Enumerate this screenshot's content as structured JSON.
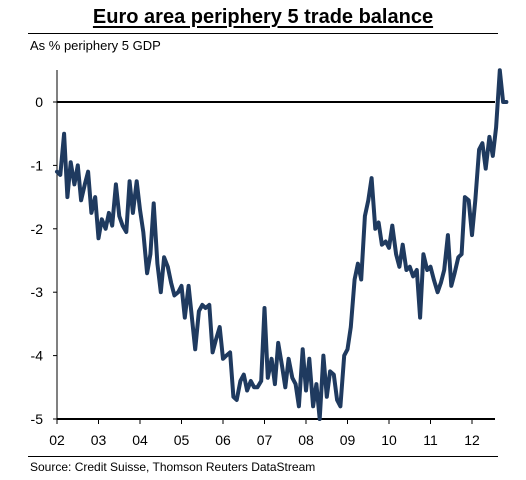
{
  "header": {
    "title": "Euro area periphery 5 trade balance",
    "subtitle": "As % periphery 5 GDP"
  },
  "footer": {
    "source": "Source: Credit Suisse, Thomson Reuters DataStream"
  },
  "colors": {
    "line": "#1F3A5F",
    "axis": "#000000"
  },
  "chart_data": {
    "type": "line",
    "title": "Euro area periphery 5 trade balance",
    "ylabel": "As % periphery 5 GDP",
    "xlabel": "",
    "ylim": [
      -5,
      0.5
    ],
    "xlim": [
      2002.0,
      2012.83
    ],
    "y_ticks": [
      "0",
      "-1",
      "-2",
      "-3",
      "-4",
      "-5"
    ],
    "y_tick_values": [
      0,
      -1,
      -2,
      -3,
      -4,
      -5
    ],
    "x_ticks": [
      "02",
      "03",
      "04",
      "05",
      "06",
      "07",
      "08",
      "09",
      "10",
      "11",
      "12"
    ],
    "x_tick_values": [
      2002,
      2003,
      2004,
      2005,
      2006,
      2007,
      2008,
      2009,
      2010,
      2011,
      2012
    ],
    "grid": false,
    "series": [
      {
        "x": [
          2002.0,
          2002.08,
          2002.17,
          2002.25,
          2002.33,
          2002.42,
          2002.5,
          2002.58,
          2002.67,
          2002.75,
          2002.83,
          2002.92,
          2003.0,
          2003.08,
          2003.17,
          2003.25,
          2003.33,
          2003.42,
          2003.5,
          2003.58,
          2003.67,
          2003.75,
          2003.83,
          2003.92,
          2004.0,
          2004.08,
          2004.17,
          2004.25,
          2004.33,
          2004.42,
          2004.5,
          2004.58,
          2004.67,
          2004.75,
          2004.83,
          2004.92,
          2005.0,
          2005.08,
          2005.17,
          2005.25,
          2005.33,
          2005.42,
          2005.5,
          2005.58,
          2005.67,
          2005.75,
          2005.83,
          2005.92,
          2006.0,
          2006.08,
          2006.17,
          2006.25,
          2006.33,
          2006.42,
          2006.5,
          2006.58,
          2006.67,
          2006.75,
          2006.83,
          2006.92,
          2007.0,
          2007.08,
          2007.17,
          2007.25,
          2007.33,
          2007.42,
          2007.5,
          2007.58,
          2007.67,
          2007.75,
          2007.83,
          2007.92,
          2008.0,
          2008.08,
          2008.17,
          2008.25,
          2008.33,
          2008.42,
          2008.5,
          2008.58,
          2008.67,
          2008.75,
          2008.83,
          2008.92,
          2009.0,
          2009.08,
          2009.17,
          2009.25,
          2009.33,
          2009.42,
          2009.5,
          2009.58,
          2009.67,
          2009.75,
          2009.83,
          2009.92,
          2010.0,
          2010.08,
          2010.17,
          2010.25,
          2010.33,
          2010.42,
          2010.5,
          2010.58,
          2010.67,
          2010.75,
          2010.83,
          2010.92,
          2011.0,
          2011.08,
          2011.17,
          2011.25,
          2011.33,
          2011.42,
          2011.5,
          2011.58,
          2011.67,
          2011.75,
          2011.83,
          2011.92,
          2012.0,
          2012.08,
          2012.17,
          2012.25,
          2012.33,
          2012.42,
          2012.5,
          2012.58,
          2012.67,
          2012.75,
          2012.83
        ],
        "values": [
          -1.1,
          -1.15,
          -0.5,
          -1.5,
          -0.95,
          -1.3,
          -1.0,
          -1.55,
          -1.3,
          -1.1,
          -1.75,
          -1.5,
          -2.15,
          -1.85,
          -2.0,
          -1.75,
          -1.95,
          -1.3,
          -1.8,
          -1.95,
          -2.05,
          -1.25,
          -1.75,
          -1.25,
          -1.7,
          -2.05,
          -2.7,
          -2.4,
          -1.6,
          -2.55,
          -3.0,
          -2.45,
          -2.6,
          -2.85,
          -3.05,
          -3.0,
          -2.9,
          -3.4,
          -2.9,
          -3.4,
          -3.9,
          -3.3,
          -3.2,
          -3.25,
          -3.2,
          -3.95,
          -3.75,
          -3.55,
          -4.05,
          -4.0,
          -3.95,
          -4.65,
          -4.7,
          -4.4,
          -4.3,
          -4.55,
          -4.4,
          -4.5,
          -4.5,
          -4.4,
          -3.25,
          -4.35,
          -4.05,
          -4.45,
          -3.8,
          -4.15,
          -4.5,
          -4.05,
          -4.35,
          -4.45,
          -4.8,
          -3.9,
          -4.55,
          -4.05,
          -4.8,
          -4.45,
          -5.0,
          -4.0,
          -4.65,
          -4.25,
          -4.3,
          -4.7,
          -4.8,
          -4.0,
          -3.9,
          -3.55,
          -2.8,
          -2.55,
          -2.8,
          -1.8,
          -1.55,
          -1.2,
          -2.0,
          -1.9,
          -2.25,
          -2.2,
          -2.3,
          -1.95,
          -2.4,
          -2.6,
          -2.25,
          -2.65,
          -2.6,
          -2.75,
          -2.65,
          -3.4,
          -2.4,
          -2.65,
          -2.6,
          -2.8,
          -3.0,
          -2.85,
          -2.65,
          -2.1,
          -2.9,
          -2.7,
          -2.45,
          -2.4,
          -1.5,
          -1.55,
          -2.1,
          -1.55,
          -0.75,
          -0.65,
          -1.05,
          -0.55,
          -0.85,
          -0.4,
          0.5,
          0.0,
          0.0
        ]
      }
    ]
  }
}
